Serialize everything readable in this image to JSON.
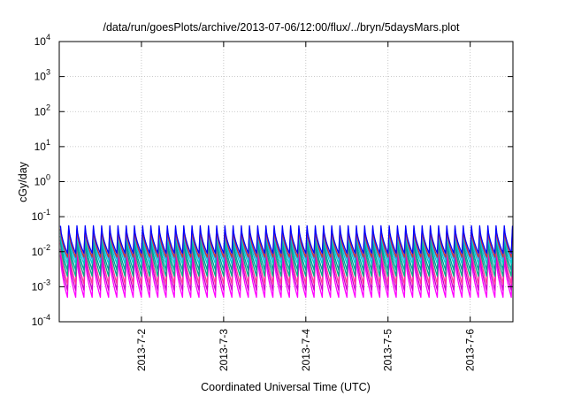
{
  "chart_data": {
    "type": "line",
    "title": "/data/run/goesPlots/archive/2013-07-06/12:00/flux/../bryn/5daysMars.plot",
    "xlabel": "Coordinated Universal Time (UTC)",
    "ylabel": "cGy/day",
    "yscale": "log",
    "ylim": [
      0.0001,
      10000
    ],
    "xlim": [
      1.0,
      6.52
    ],
    "x_ticks": [
      {
        "value": 2,
        "label": "2013-7-2"
      },
      {
        "value": 3,
        "label": "2013-7-3"
      },
      {
        "value": 4,
        "label": "2013-7-4"
      },
      {
        "value": 5,
        "label": "2013-7-5"
      },
      {
        "value": 6,
        "label": "2013-7-6"
      }
    ],
    "y_ticks": [
      {
        "value": 0.0001,
        "base": "10",
        "exp": "-4"
      },
      {
        "value": 0.001,
        "base": "10",
        "exp": "-3"
      },
      {
        "value": 0.01,
        "base": "10",
        "exp": "-2"
      },
      {
        "value": 0.1,
        "base": "10",
        "exp": "-1"
      },
      {
        "value": 1,
        "base": "10",
        "exp": "0"
      },
      {
        "value": 10,
        "base": "10",
        "exp": "1"
      },
      {
        "value": 100,
        "base": "10",
        "exp": "2"
      },
      {
        "value": 1000,
        "base": "10",
        "exp": "3"
      },
      {
        "value": 10000,
        "base": "10",
        "exp": "4"
      }
    ],
    "grid": true,
    "sawtooth_period_days": 0.1,
    "series": [
      {
        "color": "#ff00ff",
        "peak": 0.008,
        "trough": 0.0005
      },
      {
        "color": "#cc00cc",
        "peak": 0.012,
        "trough": 0.0008
      },
      {
        "color": "#ff3399",
        "peak": 0.018,
        "trough": 0.0012
      },
      {
        "color": "#00aa88",
        "peak": 0.022,
        "trough": 0.002
      },
      {
        "color": "#009999",
        "peak": 0.028,
        "trough": 0.003
      },
      {
        "color": "#00cccc",
        "peak": 0.035,
        "trough": 0.0045
      },
      {
        "color": "#3399ff",
        "peak": 0.042,
        "trough": 0.006
      },
      {
        "color": "#cc3333",
        "peak": 0.045,
        "trough": 0.007
      },
      {
        "color": "#0000ff",
        "peak": 0.055,
        "trough": 0.009
      }
    ]
  }
}
